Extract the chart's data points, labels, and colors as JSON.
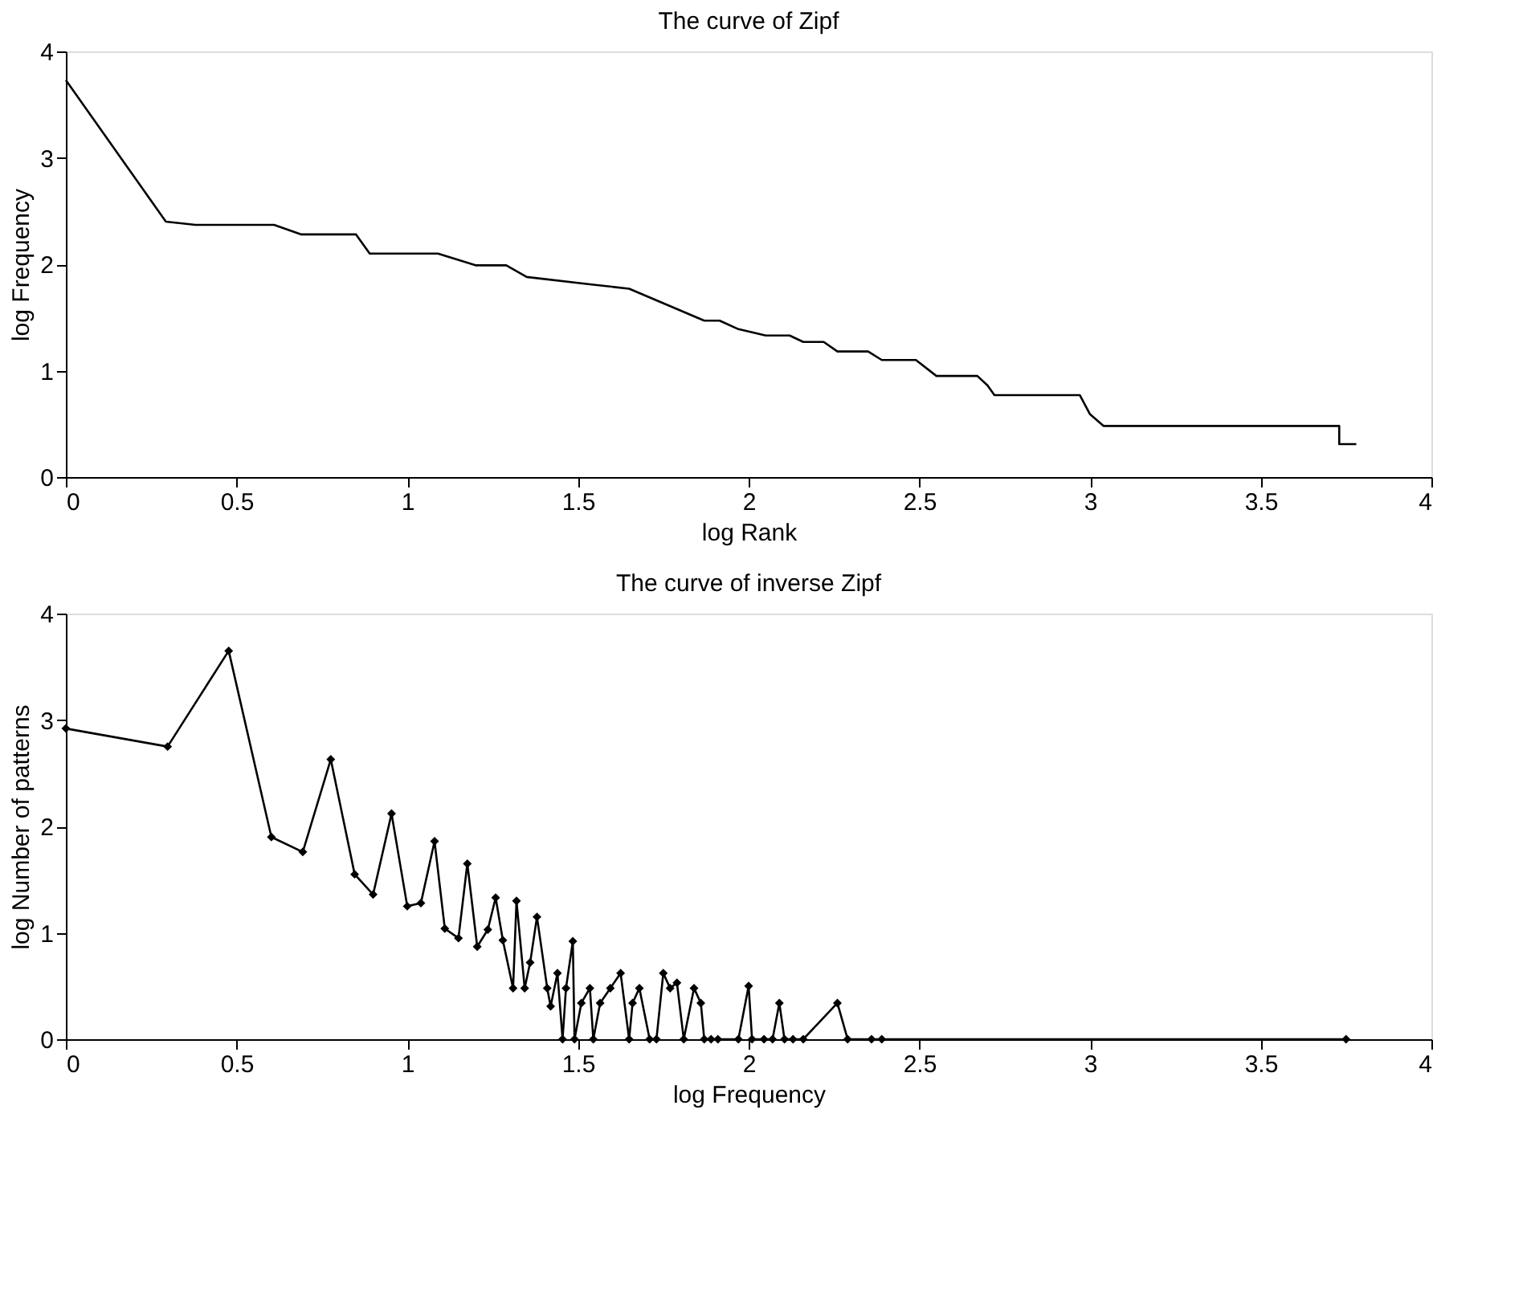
{
  "chart_data": [
    {
      "type": "line",
      "title": "The curve of Zipf",
      "xlabel": "log Rank",
      "ylabel": "log Frequency",
      "xlim": [
        0,
        4
      ],
      "ylim": [
        0,
        4
      ],
      "xticks": [
        0,
        0.5,
        1,
        1.5,
        2,
        2.5,
        3,
        3.5,
        4
      ],
      "yticks": [
        0,
        1,
        2,
        3,
        4
      ],
      "grid": false,
      "marker": "none",
      "line_style": "solid",
      "series": [
        {
          "color": "#000000",
          "x": [
            0,
            0.293,
            0.38,
            0.61,
            0.69,
            0.85,
            0.89,
            1.09,
            1.2,
            1.29,
            1.35,
            1.54,
            1.65,
            1.87,
            1.915,
            1.97,
            2.05,
            2.12,
            2.16,
            2.22,
            2.26,
            2.35,
            2.39,
            2.49,
            2.55,
            2.67,
            2.7,
            2.72,
            2.97,
            3.0,
            3.04,
            3.73,
            3.73,
            3.78
          ],
          "values": [
            3.73,
            2.4,
            2.37,
            2.37,
            2.28,
            2.28,
            2.1,
            2.1,
            1.99,
            1.99,
            1.88,
            1.81,
            1.77,
            1.47,
            1.47,
            1.39,
            1.33,
            1.33,
            1.27,
            1.27,
            1.18,
            1.18,
            1.1,
            1.1,
            0.95,
            0.95,
            0.86,
            0.77,
            0.77,
            0.59,
            0.48,
            0.48,
            0.31,
            0.31
          ]
        }
      ]
    },
    {
      "type": "line",
      "title": "The curve of inverse Zipf",
      "xlabel": "log Frequency",
      "ylabel": "log Number of patterns",
      "xlim": [
        0,
        4
      ],
      "ylim": [
        0,
        4
      ],
      "xticks": [
        0,
        0.5,
        1,
        1.5,
        2,
        2.5,
        3,
        3.5,
        4
      ],
      "yticks": [
        0,
        1,
        2,
        3,
        4
      ],
      "grid": false,
      "marker": "diamond",
      "line_style": "solid",
      "series": [
        {
          "color": "#000000",
          "x": [
            0,
            0.298,
            0.477,
            0.602,
            0.694,
            0.776,
            0.846,
            0.9,
            0.954,
            1.0,
            1.04,
            1.08,
            1.11,
            1.15,
            1.176,
            1.205,
            1.236,
            1.259,
            1.28,
            1.31,
            1.32,
            1.344,
            1.36,
            1.38,
            1.41,
            1.42,
            1.44,
            1.455,
            1.465,
            1.485,
            1.49,
            1.51,
            1.535,
            1.545,
            1.565,
            1.595,
            1.625,
            1.65,
            1.66,
            1.68,
            1.71,
            1.73,
            1.75,
            1.77,
            1.79,
            1.81,
            1.84,
            1.86,
            1.87,
            1.89,
            1.91,
            1.97,
            2.0,
            2.01,
            2.045,
            2.07,
            2.09,
            2.105,
            2.13,
            2.16,
            2.26,
            2.29,
            2.36,
            2.39,
            3.75
          ],
          "values": [
            2.92,
            2.75,
            3.65,
            1.9,
            1.76,
            2.63,
            1.55,
            1.36,
            2.12,
            1.25,
            1.28,
            1.86,
            1.04,
            0.95,
            1.65,
            0.87,
            1.03,
            1.33,
            0.93,
            0.48,
            1.3,
            0.48,
            0.72,
            1.15,
            0.48,
            0.31,
            0.62,
            0,
            0.48,
            0.92,
            0,
            0.34,
            0.48,
            0,
            0.34,
            0.48,
            0.62,
            0,
            0.34,
            0.48,
            0,
            0,
            0.62,
            0.48,
            0.53,
            0,
            0.48,
            0.34,
            0,
            0,
            0,
            0,
            0.5,
            0,
            0,
            0,
            0.34,
            0,
            0,
            0,
            0.34,
            0,
            0,
            0,
            0
          ]
        }
      ]
    }
  ]
}
